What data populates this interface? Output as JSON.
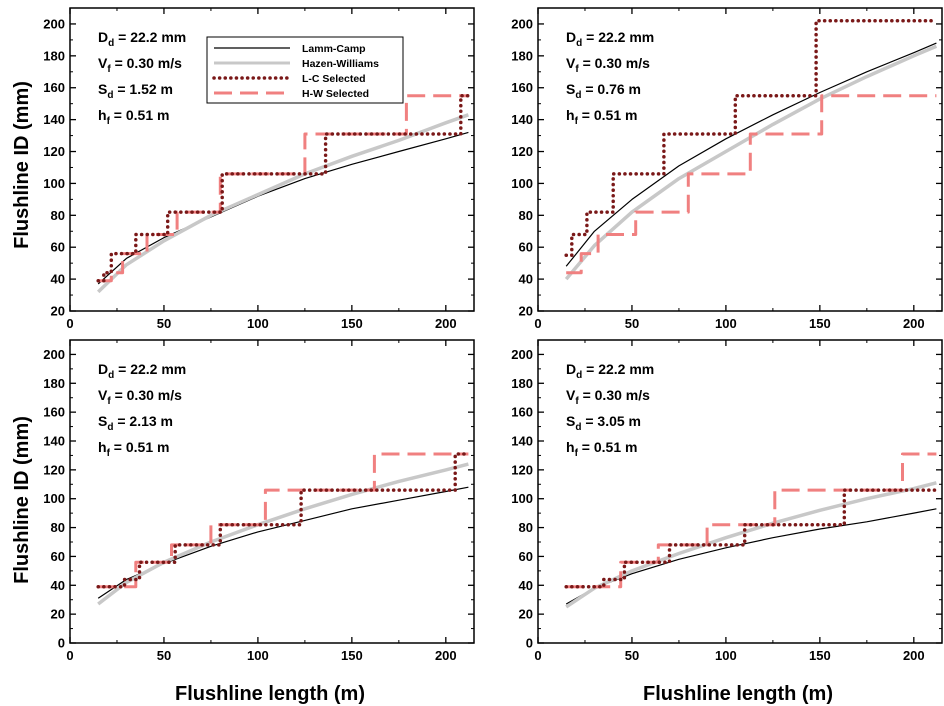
{
  "figure": {
    "ylabel": "Flushline ID (mm)",
    "xlabel": "Flushline length (m)"
  },
  "legend": {
    "placement": "top-center of first panel",
    "entries": [
      {
        "label": "Lamm-Camp",
        "color": "#000000",
        "style": "thin-solid"
      },
      {
        "label": "Hazen-Williams",
        "color": "#c8c8c8",
        "style": "thick-solid"
      },
      {
        "label": "L-C Selected",
        "color": "#7a1818",
        "style": "dotted"
      },
      {
        "label": "H-W Selected",
        "color": "#f08080",
        "style": "dashed"
      }
    ]
  },
  "chart_data": [
    {
      "type": "line",
      "panel": "top-left",
      "xlim": [
        0,
        215
      ],
      "ylim": [
        20,
        210
      ],
      "xticks": [
        0,
        50,
        100,
        150,
        200
      ],
      "yticks": [
        20,
        40,
        60,
        80,
        100,
        120,
        140,
        160,
        180,
        200
      ],
      "annotations": [
        {
          "main": "D",
          "sub": "d",
          "rest": " = 22.2 mm"
        },
        {
          "main": "V",
          "sub": "f",
          "rest": " = 0.30 m/s"
        },
        {
          "main": "S",
          "sub": "d",
          "rest": " = 1.52 m"
        },
        {
          "main": "h",
          "sub": "f",
          "rest": " = 0.51 m"
        }
      ],
      "series": [
        {
          "name": "Lamm-Camp",
          "x": [
            15,
            30,
            50,
            75,
            100,
            125,
            150,
            175,
            200,
            212
          ],
          "y": [
            37,
            53,
            66,
            79,
            92,
            103,
            112,
            120,
            128,
            132
          ]
        },
        {
          "name": "Hazen-Williams",
          "x": [
            15,
            30,
            50,
            75,
            100,
            125,
            150,
            175,
            200,
            212
          ],
          "y": [
            32,
            49,
            64,
            80,
            93,
            106,
            117,
            127,
            138,
            143
          ]
        },
        {
          "name": "L-C Selected",
          "x": [
            15,
            18,
            18,
            22,
            22,
            35,
            35,
            52,
            52,
            81,
            81,
            136,
            136,
            208,
            208,
            212
          ],
          "y": [
            39,
            39,
            44,
            44,
            56,
            56,
            68,
            68,
            82,
            82,
            106,
            106,
            131,
            131,
            155,
            155
          ]
        },
        {
          "name": "H-W Selected",
          "x": [
            15,
            22,
            22,
            28,
            28,
            41,
            41,
            57,
            57,
            80,
            80,
            125,
            125,
            179,
            179,
            212
          ],
          "y": [
            39,
            39,
            44,
            44,
            56,
            56,
            68,
            68,
            82,
            82,
            106,
            106,
            131,
            131,
            155,
            155
          ]
        }
      ]
    },
    {
      "type": "line",
      "panel": "top-right",
      "xlim": [
        0,
        215
      ],
      "ylim": [
        20,
        210
      ],
      "xticks": [
        0,
        50,
        100,
        150,
        200
      ],
      "yticks": [
        20,
        40,
        60,
        80,
        100,
        120,
        140,
        160,
        180,
        200
      ],
      "annotations": [
        {
          "main": "D",
          "sub": "d",
          "rest": " = 22.2 mm"
        },
        {
          "main": "V",
          "sub": "f",
          "rest": " = 0.30 m/s"
        },
        {
          "main": "S",
          "sub": "d",
          "rest": " = 0.76 m"
        },
        {
          "main": "h",
          "sub": "f",
          "rest": " = 0.51 m"
        }
      ],
      "series": [
        {
          "name": "Lamm-Camp",
          "x": [
            15,
            30,
            50,
            75,
            100,
            125,
            150,
            175,
            200,
            212
          ],
          "y": [
            48,
            70,
            90,
            111,
            128,
            143,
            157,
            170,
            182,
            188
          ]
        },
        {
          "name": "Hazen-Williams",
          "x": [
            15,
            30,
            50,
            75,
            100,
            125,
            150,
            175,
            200,
            212
          ],
          "y": [
            40,
            61,
            82,
            103,
            120,
            137,
            153,
            167,
            180,
            186
          ]
        },
        {
          "name": "L-C Selected",
          "x": [
            15,
            18,
            18,
            26,
            26,
            40,
            40,
            67,
            67,
            105,
            105,
            148,
            148,
            212
          ],
          "y": [
            55,
            55,
            68,
            68,
            82,
            82,
            106,
            106,
            131,
            131,
            155,
            155,
            202,
            202
          ]
        },
        {
          "name": "H-W Selected",
          "x": [
            15,
            23,
            23,
            32,
            32,
            52,
            52,
            80,
            80,
            113,
            113,
            151,
            151,
            212
          ],
          "y": [
            44,
            44,
            56,
            56,
            68,
            68,
            82,
            82,
            106,
            106,
            131,
            131,
            155,
            155
          ]
        }
      ]
    },
    {
      "type": "line",
      "panel": "bottom-left",
      "xlim": [
        0,
        215
      ],
      "ylim": [
        0,
        210
      ],
      "xticks": [
        0,
        50,
        100,
        150,
        200
      ],
      "yticks": [
        0,
        20,
        40,
        60,
        80,
        100,
        120,
        140,
        160,
        180,
        200
      ],
      "annotations": [
        {
          "main": "D",
          "sub": "d",
          "rest": " = 22.2 mm"
        },
        {
          "main": "V",
          "sub": "f",
          "rest": " = 0.30 m/s"
        },
        {
          "main": "S",
          "sub": "d",
          "rest": " = 2.13 m"
        },
        {
          "main": "h",
          "sub": "f",
          "rest": " = 0.51 m"
        }
      ],
      "series": [
        {
          "name": "Lamm-Camp",
          "x": [
            15,
            30,
            50,
            75,
            100,
            125,
            150,
            175,
            200,
            212
          ],
          "y": [
            31,
            44,
            55,
            67,
            77,
            85,
            93,
            99,
            105,
            108
          ]
        },
        {
          "name": "Hazen-Williams",
          "x": [
            15,
            30,
            50,
            75,
            100,
            125,
            150,
            175,
            200,
            212
          ],
          "y": [
            27,
            42,
            56,
            70,
            82,
            93,
            103,
            112,
            120,
            124
          ]
        },
        {
          "name": "L-C Selected",
          "x": [
            15,
            29,
            29,
            37,
            37,
            56,
            56,
            80,
            80,
            123,
            123,
            205,
            205,
            212
          ],
          "y": [
            39,
            39,
            44,
            44,
            56,
            56,
            68,
            68,
            82,
            82,
            106,
            106,
            131,
            131
          ]
        },
        {
          "name": "H-W Selected",
          "x": [
            15,
            35,
            35,
            54,
            54,
            75,
            75,
            104,
            104,
            162,
            162,
            212
          ],
          "y": [
            39,
            39,
            56,
            56,
            68,
            68,
            82,
            82,
            106,
            106,
            131,
            131
          ]
        }
      ]
    },
    {
      "type": "line",
      "panel": "bottom-right",
      "xlim": [
        0,
        215
      ],
      "ylim": [
        0,
        210
      ],
      "xticks": [
        0,
        50,
        100,
        150,
        200
      ],
      "yticks": [
        0,
        20,
        40,
        60,
        80,
        100,
        120,
        140,
        160,
        180,
        200
      ],
      "annotations": [
        {
          "main": "D",
          "sub": "d",
          "rest": " = 22.2 mm"
        },
        {
          "main": "V",
          "sub": "f",
          "rest": " = 0.30 m/s"
        },
        {
          "main": "S",
          "sub": "d",
          "rest": " = 3.05 m"
        },
        {
          "main": "h",
          "sub": "f",
          "rest": " = 0.51 m"
        }
      ],
      "series": [
        {
          "name": "Lamm-Camp",
          "x": [
            15,
            30,
            50,
            75,
            100,
            125,
            150,
            175,
            200,
            212
          ],
          "y": [
            27,
            38,
            48,
            58,
            66,
            73,
            79,
            84,
            90,
            93
          ]
        },
        {
          "name": "Hazen-Williams",
          "x": [
            15,
            30,
            50,
            75,
            100,
            125,
            150,
            175,
            200,
            212
          ],
          "y": [
            25,
            38,
            50,
            62,
            73,
            83,
            92,
            100,
            107,
            111
          ]
        },
        {
          "name": "L-C Selected",
          "x": [
            15,
            35,
            35,
            46,
            46,
            70,
            70,
            110,
            110,
            163,
            163,
            212
          ],
          "y": [
            39,
            39,
            44,
            44,
            56,
            56,
            68,
            68,
            82,
            82,
            106,
            106
          ]
        },
        {
          "name": "H-W Selected",
          "x": [
            15,
            44,
            44,
            64,
            64,
            90,
            90,
            126,
            126,
            194,
            194,
            212
          ],
          "y": [
            39,
            39,
            56,
            56,
            68,
            68,
            82,
            82,
            106,
            106,
            131,
            131
          ]
        }
      ]
    }
  ]
}
